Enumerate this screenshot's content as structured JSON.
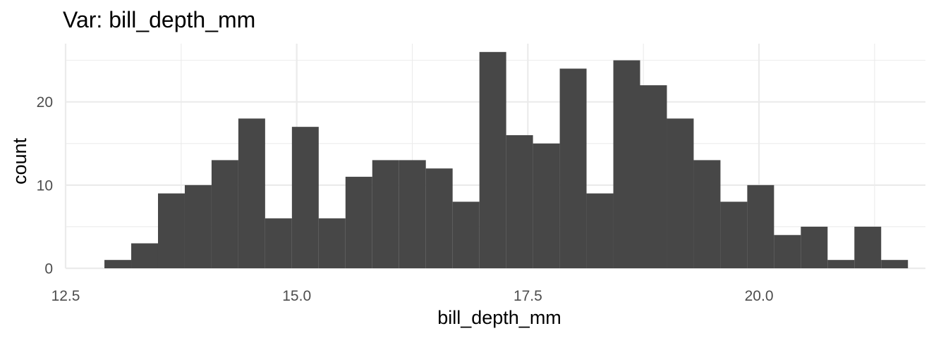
{
  "chart_data": {
    "type": "histogram",
    "title": "Var: bill_depth_mm",
    "xlabel": "bill_depth_mm",
    "ylabel": "count",
    "xlim": [
      12.5,
      21.8
    ],
    "ylim": [
      0,
      27
    ],
    "x_ticks": [
      12.5,
      15.0,
      17.5,
      20.0
    ],
    "x_tick_labels": [
      "12.5",
      "15.0",
      "17.5",
      "20.0"
    ],
    "y_ticks": [
      0,
      10,
      20
    ],
    "y_tick_labels": [
      "0",
      "10",
      "20"
    ],
    "x_minor_ticks": [
      13.75,
      16.25,
      18.75,
      21.25
    ],
    "y_minor_ticks": [
      5,
      15,
      25
    ],
    "grid": true,
    "bin_width": 0.2897,
    "bin_start": 12.92,
    "counts": [
      1,
      3,
      9,
      10,
      13,
      18,
      6,
      17,
      6,
      11,
      13,
      13,
      12,
      8,
      26,
      16,
      15,
      24,
      9,
      25,
      22,
      18,
      13,
      8,
      10,
      4,
      5,
      1,
      5,
      1
    ],
    "bar_color": "#474747",
    "grid_color": "#ebebeb",
    "tick_label_color": "#4d4d4d"
  }
}
